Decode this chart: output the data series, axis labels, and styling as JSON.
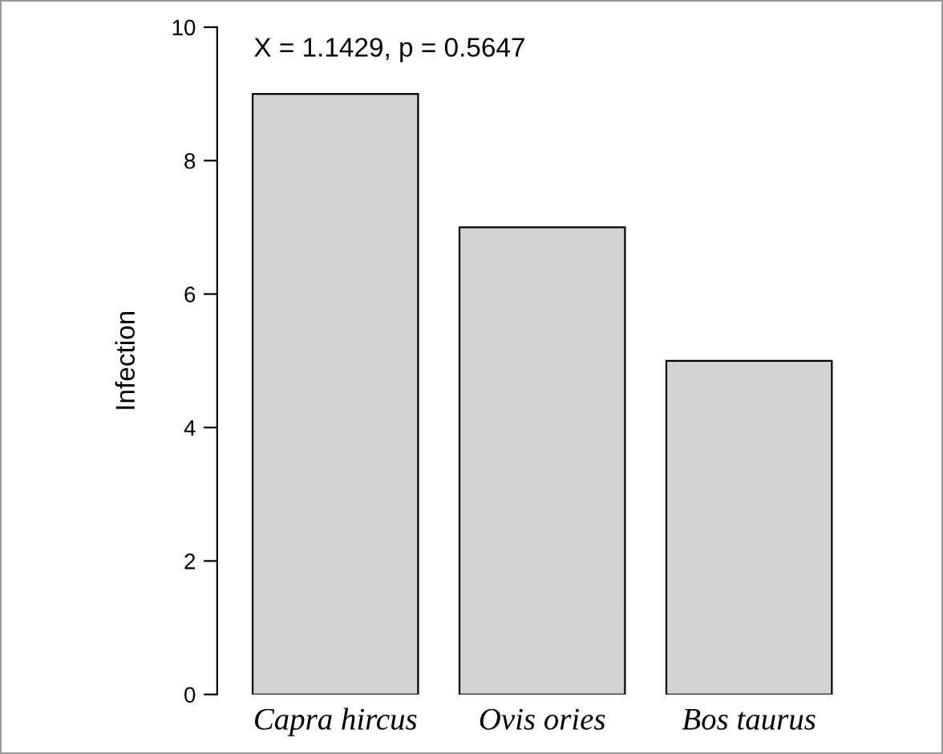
{
  "chart_data": {
    "type": "bar",
    "ylabel": "Infection",
    "categories": [
      "Capra hircus",
      "Ovis ories",
      "Bos taurus"
    ],
    "values": [
      9,
      7,
      5
    ],
    "color": "#d3d3d3",
    "ylim": [
      0,
      10
    ],
    "yticks": [
      0,
      2,
      4,
      6,
      8,
      10
    ],
    "grid": false,
    "legend": false,
    "annotations": [
      "X = 1.1429, p = 0.5647"
    ]
  }
}
